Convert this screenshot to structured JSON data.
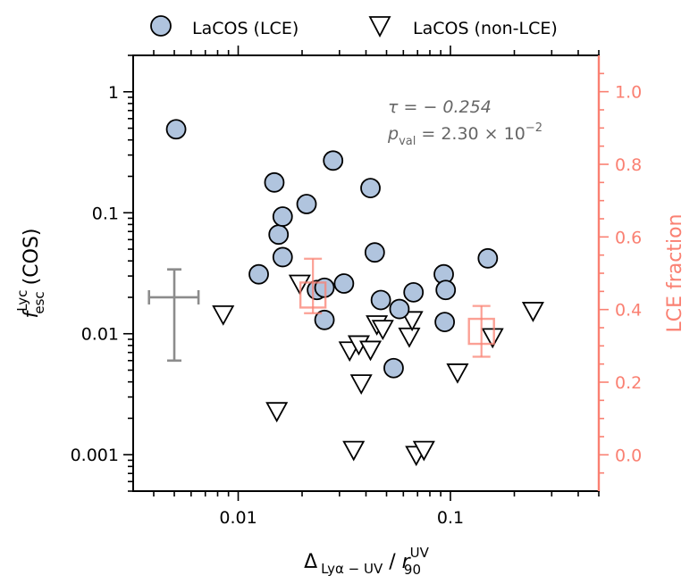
{
  "chart_data": {
    "type": "scatter",
    "legend": {
      "placement": "top-outside",
      "entries": [
        {
          "label": "LaCOS (LCE)",
          "marker": "circle"
        },
        {
          "label": "LaCOS (non-LCE)",
          "marker": "down-triangle"
        }
      ]
    },
    "xlabel": "Δ Lyα−UV / r90UV",
    "xlabel_parts": {
      "delta": "Δ",
      "delta_sub": "Lyα − UV",
      "sep": " / ",
      "r": "r",
      "r_sup": "UV",
      "r_sub": "90"
    },
    "ylabel": "fescLyc (COS)",
    "ylabel_parts": {
      "f": "f",
      "f_sup": "Lyc",
      "f_sub": "esc",
      "rest": " (COS)"
    },
    "y2label": "LCE fraction",
    "x_scale": "log",
    "y_scale": "log",
    "xlim": [
      0.0032,
      0.5
    ],
    "ylim": [
      0.0005,
      2.0
    ],
    "y2lim": [
      -0.1,
      1.1
    ],
    "x_ticks": [
      {
        "value": 0.01,
        "label": "0.01"
      },
      {
        "value": 0.1,
        "label": "0.1"
      }
    ],
    "y_ticks": [
      {
        "value": 0.001,
        "label": "0.001"
      },
      {
        "value": 0.01,
        "label": "0.01"
      },
      {
        "value": 0.1,
        "label": "0.1"
      },
      {
        "value": 1,
        "label": "1"
      }
    ],
    "y2_ticks": [
      {
        "value": 0.0,
        "label": "0.0"
      },
      {
        "value": 0.2,
        "label": "0.2"
      },
      {
        "value": 0.4,
        "label": "0.4"
      },
      {
        "value": 0.6,
        "label": "0.6"
      },
      {
        "value": 0.8,
        "label": "0.8"
      },
      {
        "value": 1.0,
        "label": "1.0"
      }
    ],
    "annotation": {
      "tau_label": "τ = − 0.254",
      "p_symbol": "p",
      "p_sub": "val",
      "p_value": " = 2.30 × 10",
      "p_exp": "−2",
      "tau": -0.254,
      "p_val": 0.023
    },
    "colors": {
      "lce_fill": "#b0c4de",
      "marker_edge": "#000000",
      "error_bar": "#8c8c8c",
      "fraction": "#fa8072",
      "annotation_text": "#666666",
      "axis": "#000000"
    },
    "series": [
      {
        "name": "LaCOS (LCE)",
        "marker": "circle",
        "points": [
          [
            0.0051,
            0.49
          ],
          [
            0.0125,
            0.031
          ],
          [
            0.0148,
            0.178
          ],
          [
            0.0155,
            0.066
          ],
          [
            0.0162,
            0.093
          ],
          [
            0.0162,
            0.043
          ],
          [
            0.021,
            0.118
          ],
          [
            0.0235,
            0.023
          ],
          [
            0.0255,
            0.024
          ],
          [
            0.0255,
            0.013
          ],
          [
            0.028,
            0.27
          ],
          [
            0.0315,
            0.026
          ],
          [
            0.042,
            0.16
          ],
          [
            0.044,
            0.047
          ],
          [
            0.047,
            0.019
          ],
          [
            0.054,
            0.0052
          ],
          [
            0.0575,
            0.016
          ],
          [
            0.067,
            0.022
          ],
          [
            0.093,
            0.031
          ],
          [
            0.094,
            0.0125
          ],
          [
            0.095,
            0.023
          ],
          [
            0.15,
            0.042
          ]
        ]
      },
      {
        "name": "LaCOS (non-LCE)",
        "marker": "down-triangle",
        "points": [
          [
            0.0085,
            0.0145
          ],
          [
            0.0152,
            0.0023
          ],
          [
            0.0195,
            0.026
          ],
          [
            0.0335,
            0.0073
          ],
          [
            0.035,
            0.0011
          ],
          [
            0.037,
            0.0082
          ],
          [
            0.038,
            0.0039
          ],
          [
            0.042,
            0.0074
          ],
          [
            0.045,
            0.012
          ],
          [
            0.048,
            0.011
          ],
          [
            0.064,
            0.0095
          ],
          [
            0.066,
            0.013
          ],
          [
            0.069,
            0.001
          ],
          [
            0.075,
            0.0011
          ],
          [
            0.108,
            0.0048
          ],
          [
            0.158,
            0.0094
          ],
          [
            0.245,
            0.0155
          ]
        ]
      }
    ],
    "typical_error": {
      "x": 0.005,
      "y": 0.02,
      "x_low": 0.0038,
      "x_high": 0.0065,
      "y_low": 0.006,
      "y_high": 0.034
    },
    "lce_fraction": [
      {
        "x": 0.0225,
        "frac": 0.44,
        "frac_low": 0.39,
        "frac_high": 0.54
      },
      {
        "x": 0.14,
        "frac": 0.34,
        "frac_low": 0.27,
        "frac_high": 0.41
      }
    ]
  }
}
